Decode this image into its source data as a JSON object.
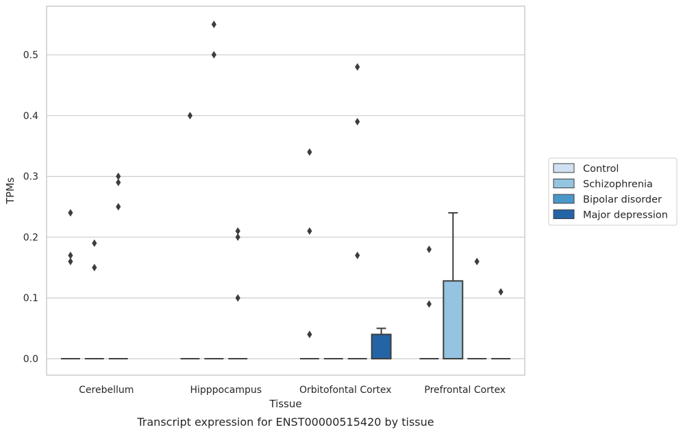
{
  "chart_data": {
    "type": "box",
    "xlabel": "Tissue",
    "ylabel": "TPMs",
    "caption": "Transcript expression for ENST00000515420 by tissue",
    "categories": [
      "Cerebellum",
      "Hipppocampus",
      "Orbitofontal Cortex",
      "Prefrontal Cortex"
    ],
    "ylim": [
      -0.027,
      0.58
    ],
    "yticks": [
      "0.0",
      "0.1",
      "0.2",
      "0.3",
      "0.4",
      "0.5"
    ],
    "grid": "horizontal",
    "legend_position": "right",
    "series": [
      {
        "name": "Control",
        "color": "#d0e1f2",
        "boxes": [
          {
            "q1": 0,
            "median": 0,
            "q3": 0,
            "whisker_low": 0,
            "whisker_high": 0,
            "outliers": [
              0.24,
              0.17,
              0.16
            ]
          },
          {
            "q1": 0,
            "median": 0,
            "q3": 0,
            "whisker_low": 0,
            "whisker_high": 0,
            "outliers": [
              0.4
            ]
          },
          {
            "q1": 0,
            "median": 0,
            "q3": 0,
            "whisker_low": 0,
            "whisker_high": 0,
            "outliers": [
              0.34,
              0.21,
              0.04
            ]
          },
          {
            "q1": 0,
            "median": 0,
            "q3": 0,
            "whisker_low": 0,
            "whisker_high": 0,
            "outliers": [
              0.18,
              0.09
            ]
          }
        ]
      },
      {
        "name": "Schizophrenia",
        "color": "#94c4df",
        "boxes": [
          {
            "q1": 0,
            "median": 0,
            "q3": 0,
            "whisker_low": 0,
            "whisker_high": 0,
            "outliers": [
              0.19,
              0.15
            ]
          },
          {
            "q1": 0,
            "median": 0,
            "q3": 0,
            "whisker_low": 0,
            "whisker_high": 0,
            "outliers": [
              0.55,
              0.5
            ]
          },
          {
            "q1": 0,
            "median": 0,
            "q3": 0,
            "whisker_low": 0,
            "whisker_high": 0,
            "outliers": []
          },
          {
            "q1": 0,
            "median": 0,
            "q3": 0.128,
            "whisker_low": 0,
            "whisker_high": 0.24,
            "outliers": []
          }
        ]
      },
      {
        "name": "Bipolar disorder",
        "color": "#4a98c9",
        "boxes": [
          {
            "q1": 0,
            "median": 0,
            "q3": 0,
            "whisker_low": 0,
            "whisker_high": 0,
            "outliers": [
              0.3,
              0.29,
              0.25
            ]
          },
          {
            "q1": 0,
            "median": 0,
            "q3": 0,
            "whisker_low": 0,
            "whisker_high": 0,
            "outliers": [
              0.21,
              0.2,
              0.1
            ]
          },
          {
            "q1": 0,
            "median": 0,
            "q3": 0,
            "whisker_low": 0,
            "whisker_high": 0,
            "outliers": [
              0.48,
              0.39,
              0.17
            ]
          },
          {
            "q1": 0,
            "median": 0,
            "q3": 0,
            "whisker_low": 0,
            "whisker_high": 0,
            "outliers": [
              0.16
            ]
          }
        ]
      },
      {
        "name": "Major depression",
        "color": "#2464a6",
        "boxes": [
          null,
          null,
          {
            "q1": 0,
            "median": 0,
            "q3": 0.04,
            "whisker_low": 0,
            "whisker_high": 0.05,
            "outliers": []
          },
          {
            "q1": 0,
            "median": 0,
            "q3": 0,
            "whisker_low": 0,
            "whisker_high": 0,
            "outliers": [
              0.11
            ]
          }
        ]
      }
    ]
  }
}
